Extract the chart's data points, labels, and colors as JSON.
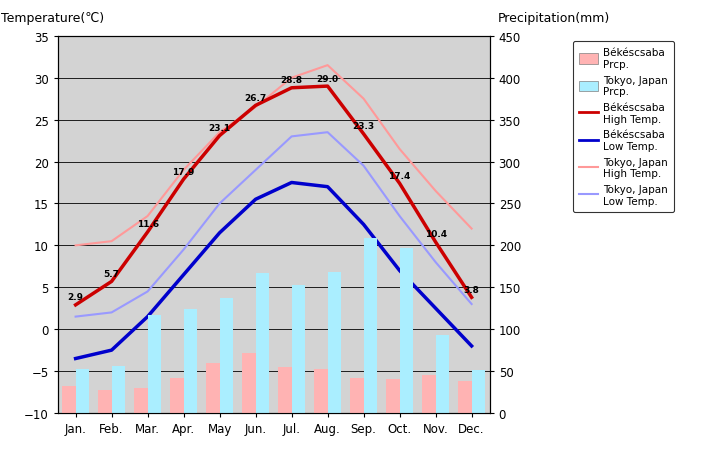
{
  "months": [
    "Jan.",
    "Feb.",
    "Mar.",
    "Apr.",
    "May",
    "Jun.",
    "Jul.",
    "Aug.",
    "Sep.",
    "Oct.",
    "Nov.",
    "Dec."
  ],
  "bekescsaba_high": [
    2.9,
    5.7,
    11.6,
    17.9,
    23.1,
    26.7,
    28.8,
    29.0,
    23.3,
    17.4,
    10.4,
    3.8
  ],
  "bekescsaba_low": [
    -3.5,
    -2.5,
    1.5,
    6.5,
    11.5,
    15.5,
    17.5,
    17.0,
    12.5,
    7.0,
    2.5,
    -2.0
  ],
  "tokyo_high": [
    10.0,
    10.5,
    13.5,
    19.0,
    23.5,
    26.5,
    30.0,
    31.5,
    27.5,
    21.5,
    16.5,
    12.0
  ],
  "tokyo_low": [
    1.5,
    2.0,
    4.5,
    9.5,
    15.0,
    19.0,
    23.0,
    23.5,
    19.5,
    13.5,
    8.0,
    3.0
  ],
  "bekescsaba_prcp_mm": [
    32,
    28,
    30,
    42,
    60,
    72,
    55,
    52,
    42,
    40,
    45,
    38
  ],
  "tokyo_prcp_mm": [
    52,
    56,
    117,
    124,
    137,
    167,
    153,
    168,
    209,
    197,
    93,
    51
  ],
  "ylim_left": [
    -10,
    35
  ],
  "ylim_right": [
    0,
    450
  ],
  "bg_color": "#d3d3d3",
  "title_left": "Temperature(℃)",
  "title_right": "Precipitation(mm)",
  "bekescsaba_high_color": "#cc0000",
  "bekescsaba_low_color": "#0000cc",
  "tokyo_high_color": "#ff9999",
  "tokyo_low_color": "#9999ff",
  "bekescsaba_prcp_color": "#ffb3b3",
  "tokyo_prcp_color": "#aaeeff",
  "yticks_left": [
    -10,
    -5,
    0,
    5,
    10,
    15,
    20,
    25,
    30,
    35
  ],
  "yticks_right": [
    0,
    50,
    100,
    150,
    200,
    250,
    300,
    350,
    400,
    450
  ]
}
